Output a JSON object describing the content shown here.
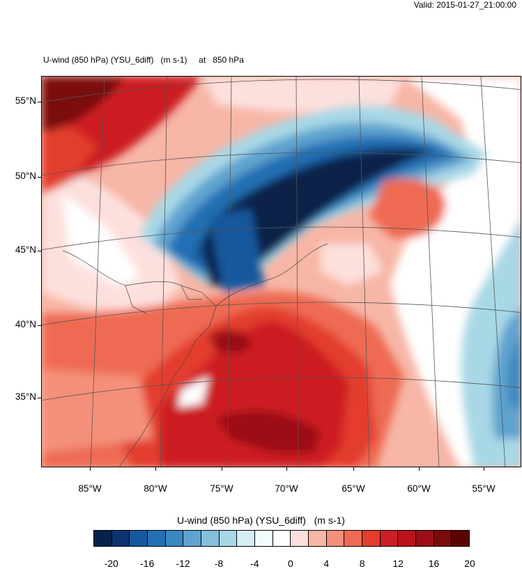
{
  "header": {
    "valid_time": "Valid: 2015-01-27_21:00:00",
    "title": "U-wind (850 hPa) (YSU_6diff)   (m s-1)     at   850 hPa"
  },
  "map": {
    "lat_labels": [
      "55°N",
      "50°N",
      "45°N",
      "40°N",
      "35°N"
    ],
    "lon_labels": [
      "85°W",
      "80°W",
      "75°W",
      "70°W",
      "65°W",
      "60°W",
      "55°W"
    ]
  },
  "colorbar": {
    "title": "U-wind (850 hPa) (YSU_6diff)   (m s-1)",
    "labels": [
      "-20",
      "-16",
      "-12",
      "-8",
      "-4",
      "0",
      "4",
      "8",
      "12",
      "16",
      "20"
    ],
    "colors": [
      "#08214a",
      "#0c3470",
      "#15589d",
      "#2270b3",
      "#3a88c0",
      "#5fa3cf",
      "#84bfdc",
      "#a8d8e6",
      "#d4eef6",
      "#f4fbfd",
      "#ffffff",
      "#fde0dd",
      "#f7b6a6",
      "#f49079",
      "#ee6a52",
      "#e33d2d",
      "#cc1f23",
      "#b8141c",
      "#9c0f16",
      "#7a0b0d",
      "#5a0404"
    ]
  }
}
